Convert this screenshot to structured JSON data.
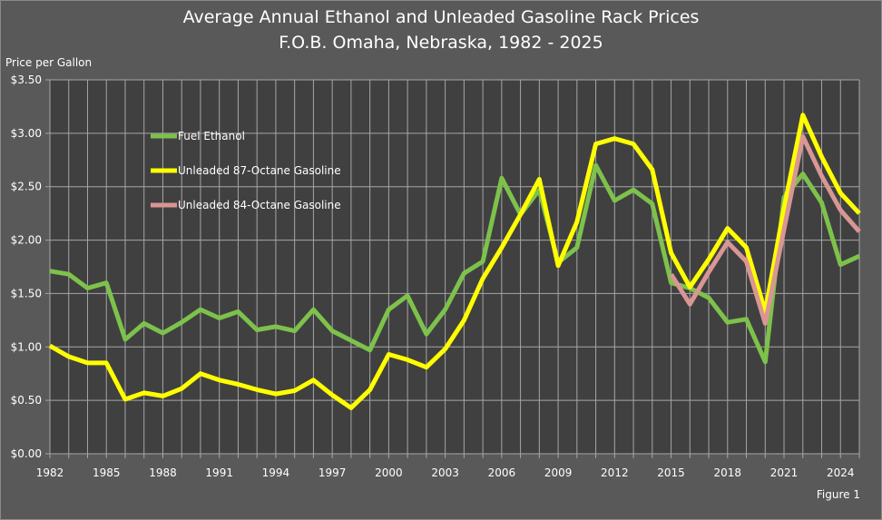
{
  "chart_data": {
    "type": "line",
    "title": "Average Annual Ethanol and Unleaded Gasoline Rack Prices",
    "subtitle": "F.O.B. Omaha, Nebraska, 1982 - 2025",
    "ylabel": "Price per Gallon",
    "xlabel": "",
    "footnote": "Figure 1",
    "ylim": [
      0,
      3.5
    ],
    "xlim": [
      1982,
      2025
    ],
    "grid": true,
    "legend_position": "upper-left inside",
    "y_ticks": [
      "$0.00",
      "$0.50",
      "$1.00",
      "$1.50",
      "$2.00",
      "$2.50",
      "$3.00",
      "$3.50"
    ],
    "x_ticks": [
      "1982",
      "1985",
      "1988",
      "1991",
      "1994",
      "1997",
      "2000",
      "2003",
      "2006",
      "2009",
      "2012",
      "2015",
      "2018",
      "2021",
      "2024"
    ],
    "x": [
      1982,
      1983,
      1984,
      1985,
      1986,
      1987,
      1988,
      1989,
      1990,
      1991,
      1992,
      1993,
      1994,
      1995,
      1996,
      1997,
      1998,
      1999,
      2000,
      2001,
      2002,
      2003,
      2004,
      2005,
      2006,
      2007,
      2008,
      2009,
      2010,
      2011,
      2012,
      2013,
      2014,
      2015,
      2016,
      2017,
      2018,
      2019,
      2020,
      2021,
      2022,
      2023,
      2024,
      2025
    ],
    "series": [
      {
        "name": "Fuel Ethanol",
        "color": "#7dc24b",
        "values": [
          1.71,
          1.68,
          1.55,
          1.6,
          1.07,
          1.22,
          1.13,
          1.23,
          1.35,
          1.27,
          1.33,
          1.16,
          1.19,
          1.15,
          1.35,
          1.15,
          1.06,
          0.97,
          1.35,
          1.48,
          1.12,
          1.35,
          1.69,
          1.8,
          2.58,
          2.24,
          2.47,
          1.79,
          1.93,
          2.7,
          2.37,
          2.47,
          2.34,
          1.6,
          1.55,
          1.46,
          1.23,
          1.26,
          0.86,
          2.4,
          2.62,
          2.35,
          1.77,
          1.85
        ]
      },
      {
        "name": "Unleaded 87-Octane Gasoline",
        "color": "#ffff00",
        "values": [
          1.01,
          0.91,
          0.85,
          0.85,
          0.51,
          0.57,
          0.54,
          0.61,
          0.75,
          0.69,
          0.65,
          0.6,
          0.56,
          0.59,
          0.69,
          0.55,
          0.43,
          0.6,
          0.93,
          0.88,
          0.81,
          0.98,
          1.25,
          1.64,
          1.93,
          2.24,
          2.57,
          1.76,
          2.17,
          2.9,
          2.95,
          2.9,
          2.66,
          1.88,
          1.56,
          1.82,
          2.11,
          1.93,
          1.33,
          2.3,
          3.17,
          2.78,
          2.44,
          2.25
        ]
      },
      {
        "name": "Unleaded 84-Octane Gasoline",
        "color": "#d99694",
        "values": [
          null,
          null,
          null,
          null,
          null,
          null,
          null,
          null,
          null,
          null,
          null,
          null,
          null,
          null,
          null,
          null,
          null,
          null,
          null,
          null,
          null,
          null,
          null,
          null,
          null,
          null,
          null,
          null,
          null,
          null,
          null,
          null,
          null,
          1.68,
          1.4,
          1.7,
          1.98,
          1.8,
          1.22,
          2.1,
          2.97,
          2.6,
          2.28,
          2.08
        ]
      }
    ]
  }
}
